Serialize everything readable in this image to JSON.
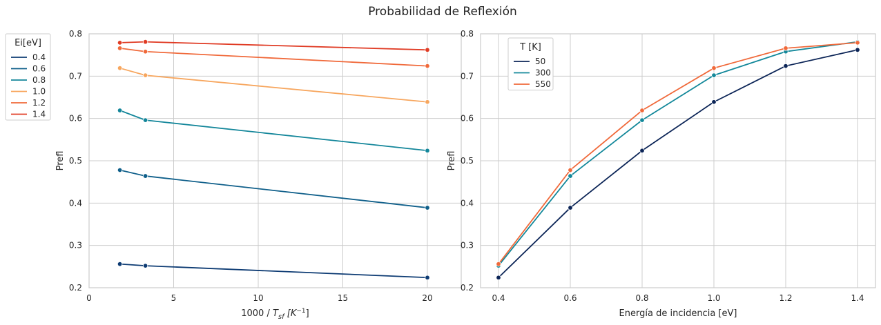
{
  "title": "Probabilidad de Reflexión",
  "chart_data": [
    {
      "type": "line",
      "xlabel_prefix": "1000 / ",
      "xlabel_math": "T",
      "xlabel_sub": "sf",
      "xlabel_unit_open": " [K",
      "xlabel_sup": "−1",
      "xlabel_unit_close": "]",
      "ylabel": "Prefl",
      "xlim": [
        0,
        22
      ],
      "ylim": [
        0.2,
        0.8
      ],
      "xticks": [
        0,
        5,
        10,
        15,
        20
      ],
      "yticks": [
        0.2,
        0.3,
        0.4,
        0.5,
        0.6,
        0.7,
        0.8
      ],
      "xtick_labels": [
        "0",
        "5",
        "10",
        "15",
        "20"
      ],
      "ytick_labels": [
        "0.2",
        "0.3",
        "0.4",
        "0.5",
        "0.6",
        "0.7",
        "0.8"
      ],
      "grid": true,
      "legend": {
        "title": "Ei[eV]",
        "placement": "outside-left"
      },
      "x": [
        1.82,
        3.33,
        20.0
      ],
      "series": [
        {
          "name": "0.4",
          "color": "#0d3b73",
          "values": [
            0.256,
            0.252,
            0.224
          ]
        },
        {
          "name": "0.6",
          "color": "#0f5f8a",
          "values": [
            0.478,
            0.464,
            0.389
          ]
        },
        {
          "name": "0.8",
          "color": "#13869a",
          "values": [
            0.619,
            0.596,
            0.524
          ]
        },
        {
          "name": "1.0",
          "color": "#f7a65e",
          "values": [
            0.719,
            0.702,
            0.639
          ]
        },
        {
          "name": "1.2",
          "color": "#f0693a",
          "values": [
            0.766,
            0.758,
            0.724
          ]
        },
        {
          "name": "1.4",
          "color": "#e03b24",
          "values": [
            0.779,
            0.781,
            0.762
          ]
        }
      ]
    },
    {
      "type": "line",
      "xlabel": "Energía de incidencia [eV]",
      "ylabel": "Prefl",
      "xlim": [
        0.35,
        1.45
      ],
      "ylim": [
        0.2,
        0.8
      ],
      "xticks": [
        0.4,
        0.6,
        0.8,
        1.0,
        1.2,
        1.4
      ],
      "yticks": [
        0.2,
        0.3,
        0.4,
        0.5,
        0.6,
        0.7,
        0.8
      ],
      "xtick_labels": [
        "0.4",
        "0.6",
        "0.8",
        "1.0",
        "1.2",
        "1.4"
      ],
      "ytick_labels": [
        "0.2",
        "0.3",
        "0.4",
        "0.5",
        "0.6",
        "0.7",
        "0.8"
      ],
      "grid": true,
      "legend": {
        "title": "T [K]",
        "placement": "top-left"
      },
      "x": [
        0.4,
        0.6,
        0.8,
        1.0,
        1.2,
        1.4
      ],
      "series": [
        {
          "name": "50",
          "color": "#0c2557",
          "values": [
            0.224,
            0.389,
            0.524,
            0.639,
            0.724,
            0.762
          ]
        },
        {
          "name": "300",
          "color": "#13889a",
          "values": [
            0.252,
            0.464,
            0.596,
            0.702,
            0.758,
            0.781
          ]
        },
        {
          "name": "550",
          "color": "#f0693a",
          "values": [
            0.256,
            0.478,
            0.619,
            0.719,
            0.766,
            0.779
          ]
        }
      ]
    }
  ]
}
